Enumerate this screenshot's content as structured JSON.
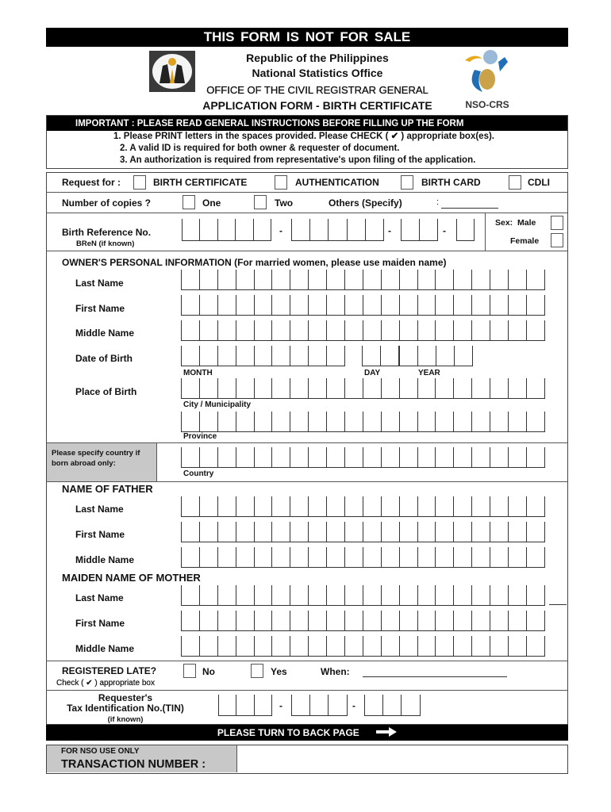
{
  "banner": "THIS FORM IS NOT FOR SALE",
  "header": {
    "line1": "Republic of the Philippines",
    "line2": "National Statistics Office",
    "line3": "OFFICE OF THE CIVIL REGISTRAR GENERAL",
    "title": "APPLICATION FORM - BIRTH CERTIFICATE",
    "logo_right_text": "NSO-CRS"
  },
  "important": {
    "heading": "IMPORTANT :  PLEASE READ GENERAL INSTRUCTIONS BEFORE FILLING UP THE FORM",
    "items": [
      "1. Please PRINT letters in the spaces provided. Please CHECK ( ✔ ) appropriate box(es).",
      "2. A valid ID is required for both owner & requester of document.",
      "3. An authorization is required from representative's upon filing of the application."
    ]
  },
  "request": {
    "label": "Request for :",
    "options": [
      "BIRTH CERTIFICATE",
      "AUTHENTICATION",
      "BIRTH CARD",
      "CDLI"
    ]
  },
  "copies": {
    "label": "Number of copies ?",
    "options": [
      "One",
      "Two"
    ],
    "others": "Others (Specify)",
    "others_sep": ":"
  },
  "bren": {
    "label": "Birth Reference No.",
    "sub": "BReN (if known)",
    "dash": "-",
    "sex_label": "Sex:",
    "male": "Male",
    "female": "Female"
  },
  "owner": {
    "title": "OWNER'S PERSONAL INFORMATION (For married women, please use maiden name)",
    "last": "Last Name",
    "first": "First Name",
    "middle": "Middle Name",
    "dob": "Date of Birth",
    "month": "MONTH",
    "day": "DAY",
    "year": "YEAR",
    "pob": "Place of Birth",
    "city": "City / Municipality",
    "province": "Province",
    "abroad": "Please specify country if born abroad only:",
    "country": "Country"
  },
  "father": {
    "title": "NAME OF FATHER",
    "last": "Last Name",
    "first": "First Name",
    "middle": "Middle Name"
  },
  "mother": {
    "title": "MAIDEN NAME OF MOTHER",
    "last": "Last Name",
    "first": "First Name",
    "middle": "Middle Name"
  },
  "late": {
    "label": "REGISTERED LATE?",
    "sub": "Check ( ✔ ) appropriate box",
    "no": "No",
    "yes": "Yes",
    "when": "When:"
  },
  "tin": {
    "line1": "Requester's",
    "line2": "Tax Identification No.(TIN)",
    "sub": "(if known)",
    "dash": "-"
  },
  "footer_bar": {
    "text": "PLEASE TURN TO BACK PAGE",
    "icon": "arrow-right-icon"
  },
  "nso": {
    "label": "FOR NSO USE ONLY",
    "transaction": "TRANSACTION NUMBER :",
    "value": ""
  }
}
